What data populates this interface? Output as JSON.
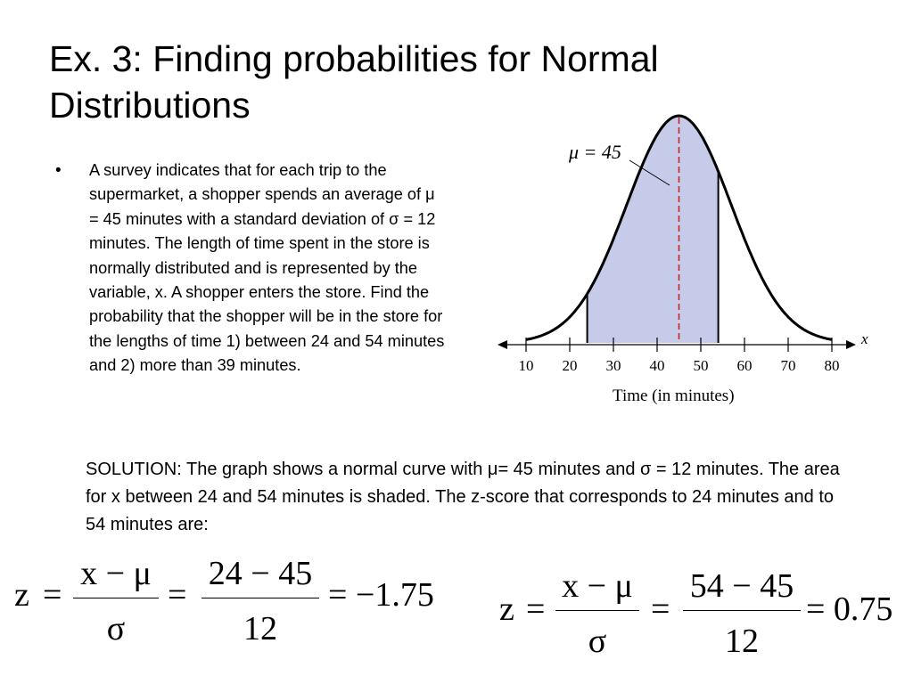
{
  "slide": {
    "title_line1": "Ex. 3:  Finding probabilities for Normal",
    "title_line2": "Distributions",
    "bullet_symbol": "•",
    "bullet_text": "A survey indicates that for each trip to the supermarket, a shopper spends an average of μ = 45 minutes with a standard deviation of σ = 12 minutes.  The length of time spent in the store is normally distributed and is represented by the variable, x.  A shopper enters the store.  Find the probability that the shopper will be in the store for the lengths of time 1) between 24 and 54 minutes and 2) more than 39 minutes.",
    "solution_text": "SOLUTION:  The graph shows a normal curve with μ= 45 minutes and σ = 12 minutes.  The area for x between 24 and 54 minutes is shaded.  The z-score that corresponds to 24 minutes and to 54 minutes are:"
  },
  "graph": {
    "mean_label": "μ = 45",
    "axis_variable": "x",
    "axis_title": "Time (in minutes)",
    "tick_labels": [
      "10",
      "20",
      "30",
      "40",
      "50",
      "60",
      "70",
      "80"
    ],
    "mean": 45,
    "sd": 12,
    "shade_from": 24,
    "shade_to": 54,
    "colors": {
      "shade": "#c5cbe8",
      "mean_line": "#cc2222",
      "curve": "#000000"
    }
  },
  "equations": {
    "eq1": {
      "lhs": "z",
      "eq": "=",
      "num1": "x − μ",
      "den1": "σ",
      "num2": "24 − 45",
      "den2": "12",
      "result": "= −1.75"
    },
    "eq2": {
      "lhs": "z",
      "eq": "=",
      "num1": "x − μ",
      "den1": "σ",
      "num2": "54 − 45",
      "den2": "12",
      "result": "= 0.75"
    }
  }
}
